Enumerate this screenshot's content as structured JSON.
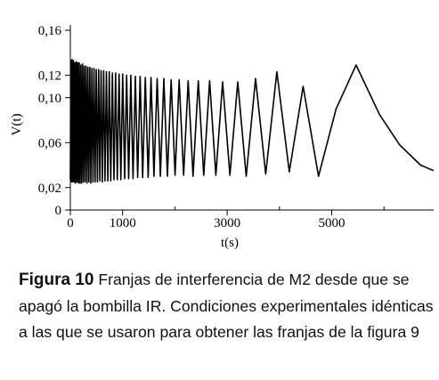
{
  "chart_data": {
    "type": "line",
    "title": "",
    "xlabel": "t(s)",
    "ylabel": "V(t)",
    "xlim": [
      0,
      6950
    ],
    "ylim": [
      0,
      0.16
    ],
    "x_ticks": [
      {
        "value": 0,
        "label": "0"
      },
      {
        "value": 1000,
        "label": "1000"
      },
      {
        "value": 3000,
        "label": "3000"
      },
      {
        "value": 5000,
        "label": "5000"
      }
    ],
    "x_minor_ticks": [
      2000,
      4000,
      6000
    ],
    "y_ticks": [
      {
        "value": 0,
        "label": "0"
      },
      {
        "value": 0.02,
        "label": "0,02"
      },
      {
        "value": 0.06,
        "label": "0,06"
      },
      {
        "value": 0.1,
        "label": "0,10"
      },
      {
        "value": 0.12,
        "label": "0,12"
      },
      {
        "value": 0.16,
        "label": "0,16"
      }
    ],
    "series": [
      {
        "points": [
          [
            0,
            0.027
          ],
          [
            8,
            0.133
          ],
          [
            20,
            0.025
          ],
          [
            33,
            0.134
          ],
          [
            46,
            0.025
          ],
          [
            59,
            0.133
          ],
          [
            72,
            0.025
          ],
          [
            85,
            0.131
          ],
          [
            99,
            0.024
          ],
          [
            113,
            0.132
          ],
          [
            127,
            0.025
          ],
          [
            141,
            0.131
          ],
          [
            156,
            0.024
          ],
          [
            171,
            0.131
          ],
          [
            186,
            0.024
          ],
          [
            201,
            0.129
          ],
          [
            217,
            0.024
          ],
          [
            233,
            0.13
          ],
          [
            249,
            0.025
          ],
          [
            266,
            0.128
          ],
          [
            283,
            0.025
          ],
          [
            300,
            0.128
          ],
          [
            318,
            0.024
          ],
          [
            336,
            0.127
          ],
          [
            354,
            0.025
          ],
          [
            373,
            0.127
          ],
          [
            392,
            0.024
          ],
          [
            412,
            0.126
          ],
          [
            432,
            0.025
          ],
          [
            453,
            0.126
          ],
          [
            474,
            0.025
          ],
          [
            496,
            0.125
          ],
          [
            518,
            0.025
          ],
          [
            541,
            0.125
          ],
          [
            564,
            0.026
          ],
          [
            588,
            0.124
          ],
          [
            612,
            0.025
          ],
          [
            637,
            0.124
          ],
          [
            663,
            0.026
          ],
          [
            690,
            0.123
          ],
          [
            717,
            0.026
          ],
          [
            745,
            0.123
          ],
          [
            774,
            0.026
          ],
          [
            804,
            0.122
          ],
          [
            834,
            0.027
          ],
          [
            866,
            0.122
          ],
          [
            898,
            0.027
          ],
          [
            932,
            0.121
          ],
          [
            966,
            0.027
          ],
          [
            1002,
            0.121
          ],
          [
            1039,
            0.028
          ],
          [
            1077,
            0.12
          ],
          [
            1116,
            0.028
          ],
          [
            1157,
            0.12
          ],
          [
            1199,
            0.028
          ],
          [
            1243,
            0.119
          ],
          [
            1288,
            0.029
          ],
          [
            1335,
            0.119
          ],
          [
            1384,
            0.029
          ],
          [
            1435,
            0.118
          ],
          [
            1488,
            0.029
          ],
          [
            1543,
            0.118
          ],
          [
            1600,
            0.03
          ],
          [
            1660,
            0.117
          ],
          [
            1722,
            0.03
          ],
          [
            1788,
            0.117
          ],
          [
            1856,
            0.03
          ],
          [
            1928,
            0.116
          ],
          [
            2003,
            0.031
          ],
          [
            2082,
            0.116
          ],
          [
            2166,
            0.031
          ],
          [
            2254,
            0.115
          ],
          [
            2347,
            0.03
          ],
          [
            2447,
            0.115
          ],
          [
            2552,
            0.031
          ],
          [
            2664,
            0.115
          ],
          [
            2784,
            0.031
          ],
          [
            2913,
            0.114
          ],
          [
            3052,
            0.031
          ],
          [
            3202,
            0.114
          ],
          [
            3365,
            0.03
          ],
          [
            3543,
            0.117
          ],
          [
            3737,
            0.032
          ],
          [
            3951,
            0.123
          ],
          [
            4188,
            0.034
          ],
          [
            4452,
            0.11
          ],
          [
            4748,
            0.03
          ],
          [
            5083,
            0.09
          ],
          [
            5467,
            0.129
          ],
          [
            5914,
            0.085
          ],
          [
            6300,
            0.058
          ],
          [
            6700,
            0.04
          ],
          [
            6950,
            0.035
          ]
        ]
      }
    ]
  },
  "caption": {
    "label": "Figura 10",
    "text": "Franjas de interferencia de M2 desde que se apagó la bombilla IR. Condiciones experimentales idénticas a las que se usaron para obtener las franjas de la figura 9"
  }
}
